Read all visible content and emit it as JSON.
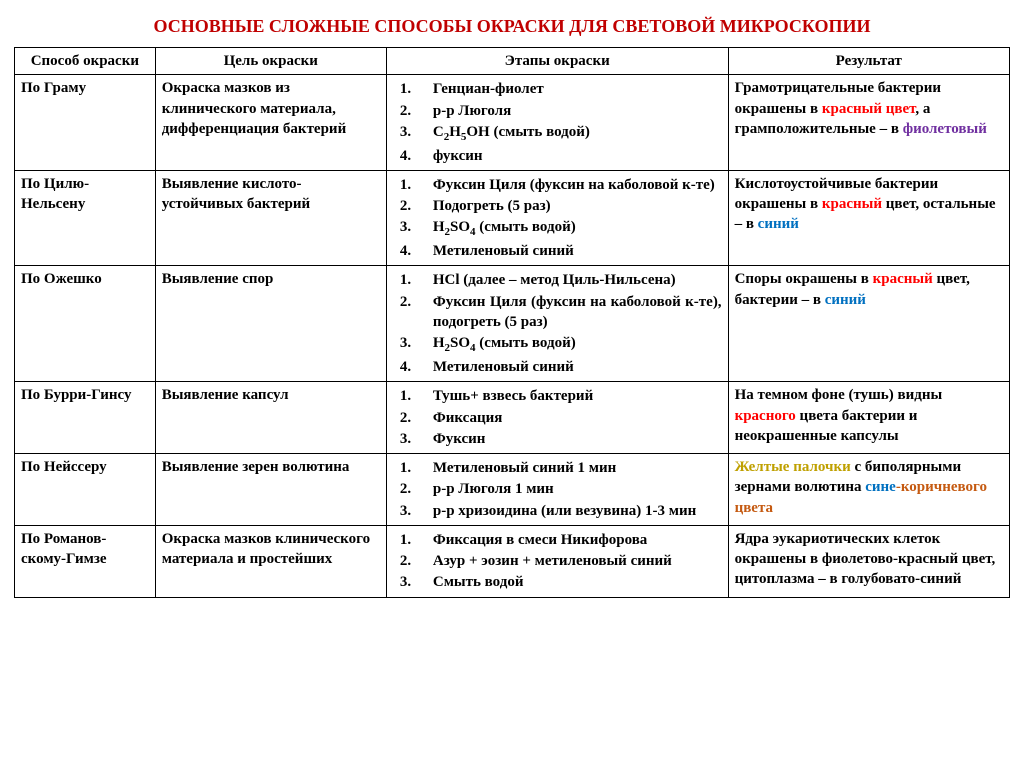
{
  "title": "ОСНОВНЫЕ СЛОЖНЫЕ СПОСОБЫ ОКРАСКИ ДЛЯ СВЕТОВОЙ МИКРОСКОПИИ",
  "columns": {
    "method": "Способ окраски",
    "goal": "Цель окраски",
    "steps": "Этапы окраски",
    "result": "Результат"
  },
  "rows": {
    "r1": {
      "method": "По Граму",
      "goal": "Окраска мазков из клинического материала, дифференциация бактерий",
      "steps": {
        "s1": "Генциан-фиолет",
        "s2": "р-р Люголя",
        "s3a": "С",
        "s3b": "Н",
        "s3c": "ОН (смыть водой)",
        "s3sub1": "2",
        "s3sub2": "5",
        "s4": "фуксин"
      },
      "result": {
        "p1": "Грамотрицательные бактерии окрашены в ",
        "red": "красный цвет",
        "p2": ", а грамположительные –  в ",
        "violet": "фиолетовый"
      }
    },
    "r2": {
      "method": "По Цилю-Нельсену",
      "goal": "Выявление кислото-устойчивых бактерий",
      "steps": {
        "s1": "Фуксин Циля (фуксин на каболовой к-те)",
        "s2": "Подогреть (5 раз)",
        "s3a": "Н",
        "s3b": "SO",
        "s3c": " (смыть водой)",
        "s3sub1": "2",
        "s3sub2": "4",
        "s4": "Метиленовый синий"
      },
      "result": {
        "p1": "Кислотоустойчивые бактерии окрашены в ",
        "red": "красный",
        "p2": " цвет, остальные – в  ",
        "blue": "синий"
      }
    },
    "r3": {
      "method": "По Ожешко",
      "goal": "Выявление спор",
      "steps": {
        "s1": "НСl (далее – метод Циль-Нильсена)",
        "s2": "Фуксин Циля (фуксин на каболовой к-те),  подогреть (5 раз)",
        "s3a": "Н",
        "s3b": "SO",
        "s3c": " (смыть водой)",
        "s3sub1": "2",
        "s3sub2": "4",
        "s4": "Метиленовый синий"
      },
      "result": {
        "p1": "Споры окрашены в ",
        "red": "красный",
        "p2": " цвет, бактерии – в ",
        "blue": "синий"
      }
    },
    "r4": {
      "method": "По Бурри-Гинсу",
      "goal": "Выявление капсул",
      "steps": {
        "s1": "Тушь+ взвесь бактерий",
        "s2": "Фиксация",
        "s3": "Фуксин"
      },
      "result": {
        "p1": "На темном фоне (тушь) видны ",
        "red": "красного",
        "p2": " цвета бактерии и неокрашенные капсулы"
      }
    },
    "r5": {
      "method": "По Нейссеру",
      "goal": "Выявление зерен волютина",
      "steps": {
        "s1": "Метиленовый синий  1 мин",
        "s2": "р-р Люголя 1 мин",
        "s3": "р-р хризоидина (или везувина) 1-3 мин"
      },
      "result": {
        "olive": "Желтые палочки",
        "p1": " с биполярными зернами волютина ",
        "blue": "сине",
        "dash": "-",
        "brown": "коричневого цвета"
      }
    },
    "r6": {
      "method": "По Романов-скому-Гимзе",
      "goal": "Окраска мазков клинического материала и простейших",
      "steps": {
        "s1": "Фиксация в смеси Никифорова",
        "s2": "Азур  + эозин  + метиленовый синий",
        "s3": "Смыть водой"
      },
      "result": {
        "p1": "Ядра эукариотических клеток окрашены в фиолетово-красный цвет,",
        "p2": "цитоплазма – в голубовато-синий"
      }
    }
  }
}
